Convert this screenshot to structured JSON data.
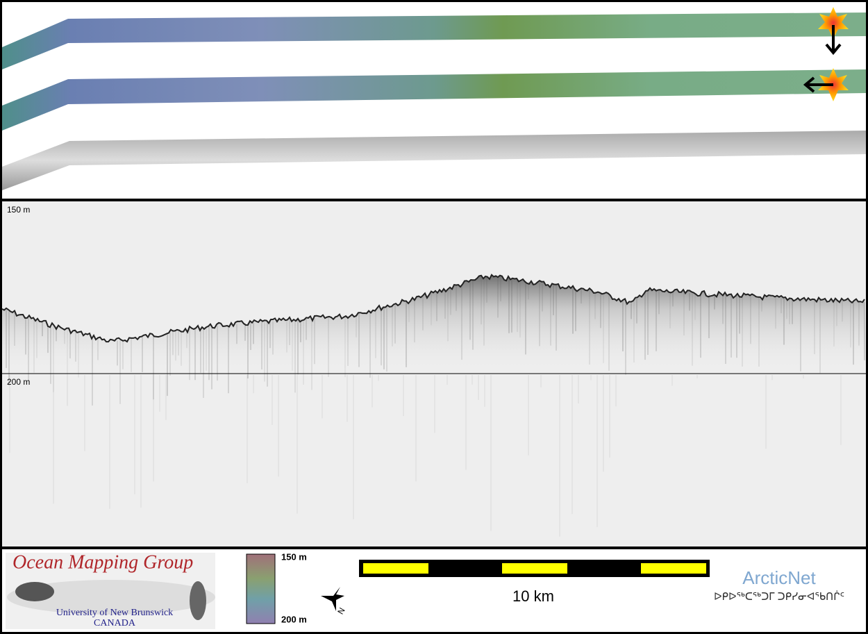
{
  "profile": {
    "depth_labels": [
      "150 m",
      "200 m"
    ]
  },
  "footer": {
    "logo": {
      "title": "Ocean Mapping Group",
      "university": "University of New Brunswick",
      "country": "CANADA"
    },
    "colorbar": {
      "top": "150 m",
      "bottom": "200 m"
    },
    "compass": "N",
    "scale_bar": "10 km",
    "partner": {
      "name": "ArcticNet",
      "syllabics": "ᐅᑭᐅᖅᑕᖅᑐᒥ ᑐᑭᓯᓂᐊᖃᑎᒌᑦ"
    }
  }
}
